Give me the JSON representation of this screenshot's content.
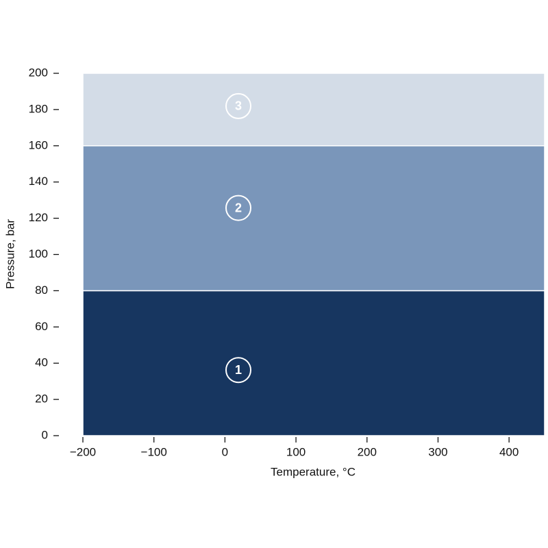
{
  "chart_data": {
    "type": "band",
    "x_label": "Temperature, °C",
    "y_label": "Pressure, bar",
    "xlim": [
      -200,
      450
    ],
    "ylim": [
      0,
      200
    ],
    "xticks": [
      {
        "value": -200,
        "label": "−200"
      },
      {
        "value": -100,
        "label": "−100"
      },
      0,
      100,
      200,
      300,
      400
    ],
    "yticks": [
      0,
      20,
      40,
      60,
      80,
      100,
      120,
      140,
      160,
      180,
      200
    ],
    "bands": [
      {
        "name": "1",
        "color": "#173660",
        "range": [
          0,
          80
        ]
      },
      {
        "name": "2",
        "color": "#7a96ba",
        "range": [
          80,
          160
        ]
      },
      {
        "name": "3",
        "color": "#d3dce7",
        "range": [
          160,
          200
        ]
      }
    ]
  }
}
